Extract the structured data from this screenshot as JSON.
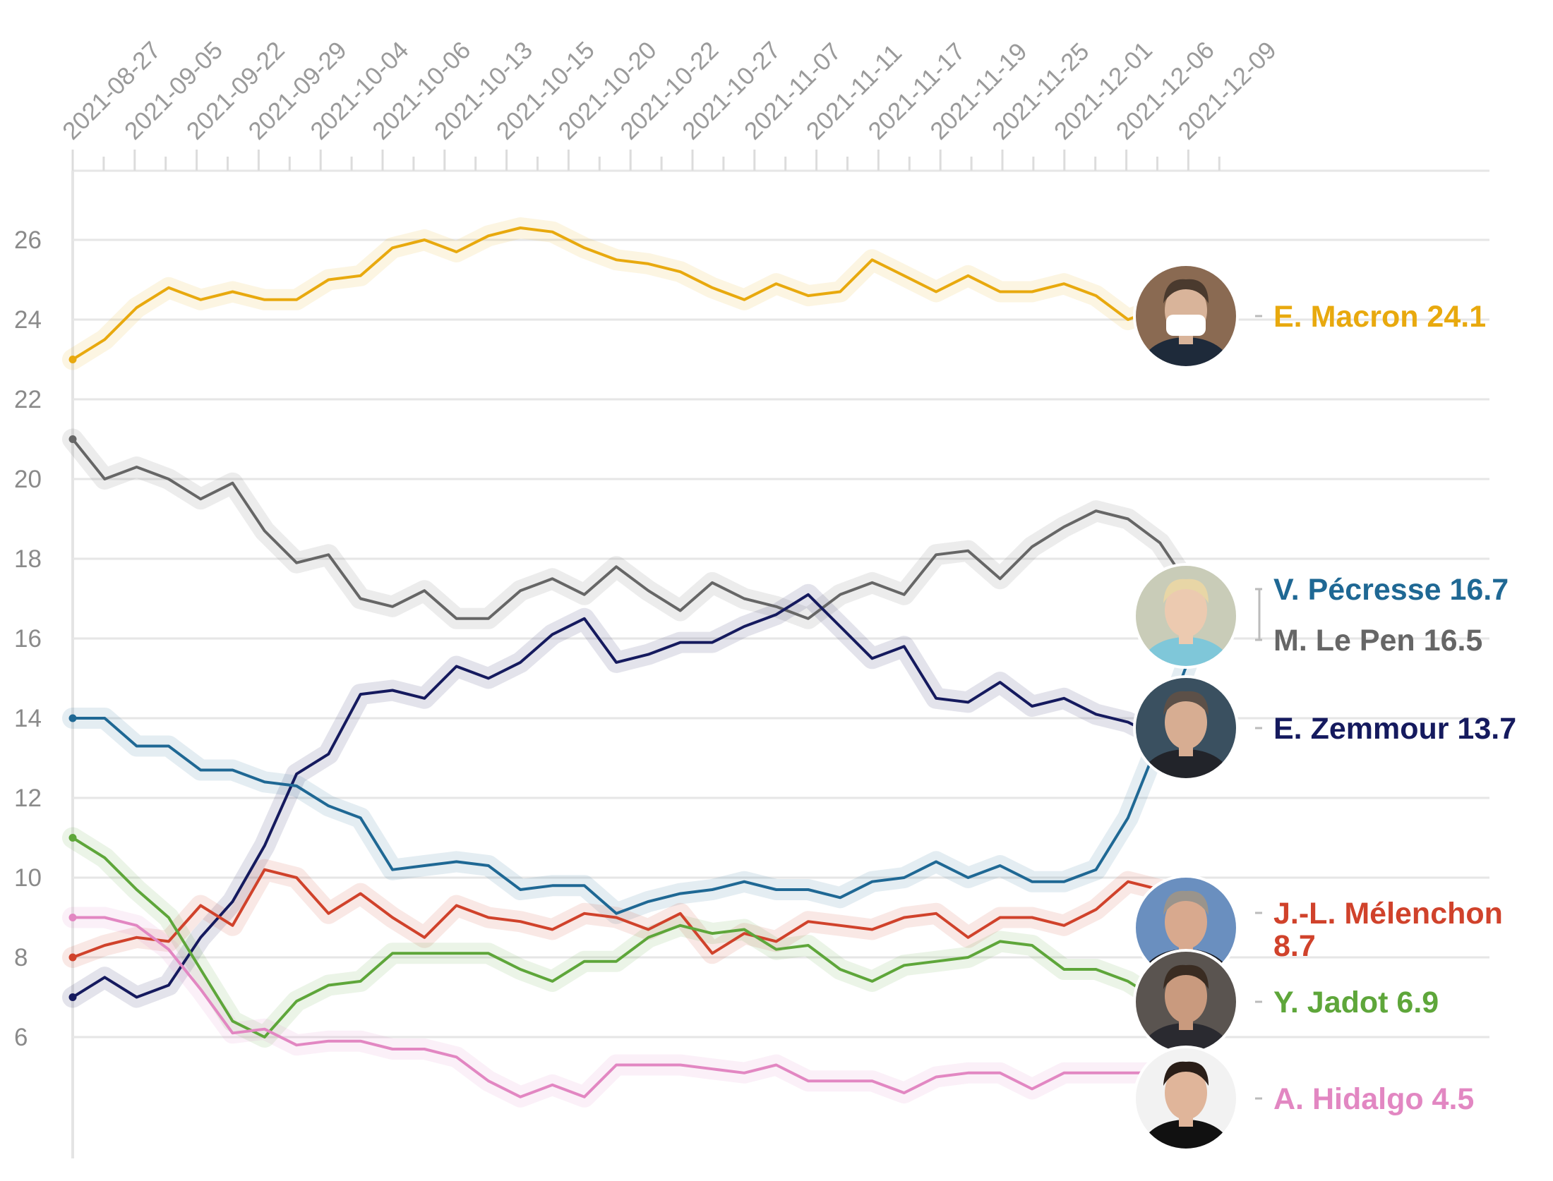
{
  "chart_data": {
    "type": "line",
    "title": "",
    "xlabel": "",
    "ylabel": "",
    "ylim": [
      3,
      27.5
    ],
    "yticks": [
      6,
      8,
      10,
      12,
      14,
      16,
      18,
      20,
      22,
      24,
      26
    ],
    "grid": true,
    "x_tick_labels": [
      "2021-08-27",
      "2021-09-05",
      "2021-09-22",
      "2021-09-29",
      "2021-10-04",
      "2021-10-06",
      "2021-10-13",
      "2021-10-15",
      "2021-10-20",
      "2021-10-22",
      "2021-10-27",
      "2021-11-07",
      "2021-11-11",
      "2021-11-17",
      "2021-11-19",
      "2021-11-25",
      "2021-12-01",
      "2021-12-06",
      "2021-12-09"
    ],
    "series": [
      {
        "name": "E. Macron",
        "label": "E. Macron 24.1",
        "color": "#e8a90e",
        "values": [
          23.0,
          23.5,
          24.3,
          24.8,
          24.5,
          24.7,
          24.5,
          24.5,
          25.0,
          25.1,
          25.8,
          26.0,
          25.7,
          26.1,
          26.3,
          26.2,
          25.8,
          25.5,
          25.4,
          25.2,
          24.8,
          24.5,
          24.9,
          24.6,
          24.7,
          25.5,
          25.1,
          24.7,
          25.1,
          24.7,
          24.7,
          24.9,
          24.6,
          24.0,
          24.3,
          24.1
        ]
      },
      {
        "name": "M. Le Pen",
        "label": "M. Le Pen 16.5",
        "color": "#666666",
        "values": [
          21.0,
          20.0,
          20.3,
          20.0,
          19.5,
          19.9,
          18.7,
          17.9,
          18.1,
          17.0,
          16.8,
          17.2,
          16.5,
          16.5,
          17.2,
          17.5,
          17.1,
          17.8,
          17.2,
          16.7,
          17.4,
          17.0,
          16.8,
          16.5,
          17.1,
          17.4,
          17.1,
          18.1,
          18.2,
          17.5,
          18.3,
          18.8,
          19.2,
          19.0,
          18.4,
          17.2,
          16.5
        ]
      },
      {
        "name": "E. Zemmour",
        "label": "E. Zemmour 13.7",
        "color": "#151a5e",
        "values": [
          7.0,
          7.5,
          7.0,
          7.3,
          8.5,
          9.4,
          10.8,
          12.6,
          13.1,
          14.6,
          14.7,
          14.5,
          15.3,
          15.0,
          15.4,
          16.1,
          16.5,
          15.4,
          15.6,
          15.9,
          15.9,
          16.3,
          16.6,
          17.1,
          16.3,
          15.5,
          15.8,
          14.5,
          14.4,
          14.9,
          14.3,
          14.5,
          14.1,
          13.9,
          13.5,
          13.7
        ]
      },
      {
        "name": "V. Pécresse",
        "label": "V. Pécresse 16.7",
        "color": "#1f6894",
        "values": [
          14.0,
          14.0,
          13.3,
          13.3,
          12.7,
          12.7,
          12.4,
          12.3,
          11.8,
          11.5,
          10.2,
          10.3,
          10.4,
          10.3,
          9.7,
          9.8,
          9.8,
          9.1,
          9.4,
          9.6,
          9.7,
          9.9,
          9.7,
          9.7,
          9.5,
          9.9,
          10.0,
          10.4,
          10.0,
          10.3,
          9.9,
          9.9,
          10.2,
          11.5,
          13.5,
          15.7,
          16.7
        ]
      },
      {
        "name": "J.-L. Mélenchon",
        "label": "J.-L. Mélenchon 8.7",
        "label_lines": [
          "J.-L. Mélenchon",
          "8.7"
        ],
        "color": "#d0422b",
        "values": [
          8.0,
          8.3,
          8.5,
          8.4,
          9.3,
          8.8,
          10.2,
          10.0,
          9.1,
          9.6,
          9.0,
          8.5,
          9.3,
          9.0,
          8.9,
          8.7,
          9.1,
          9.0,
          8.7,
          9.1,
          8.1,
          8.6,
          8.4,
          8.9,
          8.8,
          8.7,
          9.0,
          9.1,
          8.5,
          9.0,
          9.0,
          8.8,
          9.2,
          9.9,
          9.7,
          9.3,
          8.7
        ]
      },
      {
        "name": "Y. Jadot",
        "label": "Y. Jadot 6.9",
        "color": "#5ea63a",
        "values": [
          11.0,
          10.5,
          9.7,
          9.0,
          7.7,
          6.4,
          6.0,
          6.9,
          7.3,
          7.4,
          8.1,
          8.1,
          8.1,
          8.1,
          7.7,
          7.4,
          7.9,
          7.9,
          8.5,
          8.8,
          8.6,
          8.7,
          8.2,
          8.3,
          7.7,
          7.4,
          7.8,
          7.9,
          8.0,
          8.4,
          8.3,
          7.7,
          7.7,
          7.4,
          6.9,
          6.9
        ]
      },
      {
        "name": "A. Hidalgo",
        "label": "A. Hidalgo 4.5",
        "color": "#e287c2",
        "values": [
          9.0,
          9.0,
          8.8,
          8.2,
          7.2,
          6.1,
          6.2,
          5.8,
          5.9,
          5.9,
          5.7,
          5.7,
          5.5,
          4.9,
          4.5,
          4.8,
          4.5,
          5.3,
          5.3,
          5.3,
          5.2,
          5.1,
          5.3,
          4.9,
          4.9,
          4.9,
          4.6,
          5.0,
          5.1,
          5.1,
          4.7,
          5.1,
          5.1,
          5.1,
          5.1,
          4.5
        ]
      }
    ]
  }
}
